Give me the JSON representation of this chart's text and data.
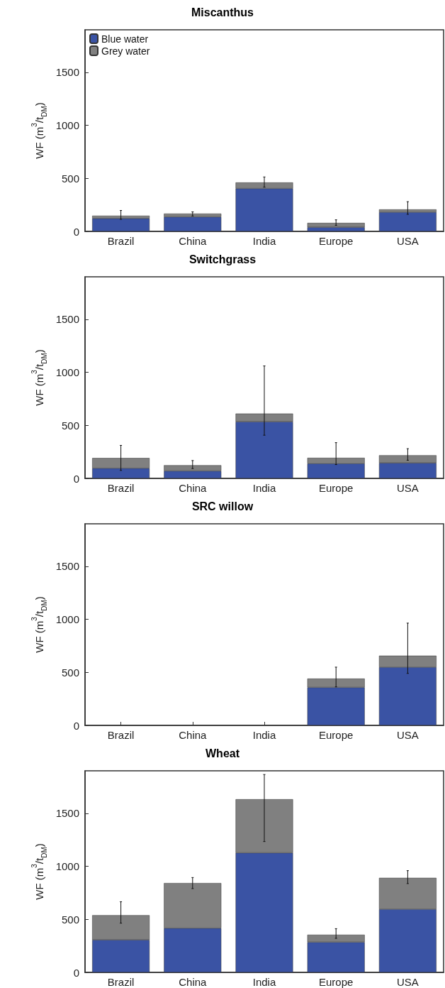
{
  "chart_data": [
    {
      "type": "bar",
      "title": "Miscanthus",
      "ylabel": "WF (m$^{3}$/t$_{DM}$)",
      "categories": [
        "Brazil",
        "China",
        "India",
        "Europe",
        "USA"
      ],
      "stacked": true,
      "legend": "top left",
      "grid": false,
      "ylim": [
        0,
        1900
      ],
      "yticks": [
        0,
        500,
        1000,
        1500
      ],
      "series": [
        {
          "name": "Blue water",
          "color": "#3a53a4",
          "values": [
            122,
            137,
            404,
            39,
            181
          ]
        },
        {
          "name": "Grey water",
          "color": "#808080",
          "values": [
            26,
            31,
            57,
            41,
            26
          ],
          "errors": [
            [
              114,
              197
            ],
            [
              145,
              184
            ],
            [
              417,
              513
            ],
            [
              57,
              109
            ],
            [
              161,
              280
            ]
          ]
        }
      ]
    },
    {
      "type": "bar",
      "title": "Switchgrass",
      "ylabel": "WF (m$^{3}$/t$_{DM}$)",
      "categories": [
        "Brazil",
        "China",
        "India",
        "Europe",
        "USA"
      ],
      "stacked": true,
      "grid": false,
      "ylim": [
        0,
        1900
      ],
      "yticks": [
        0,
        500,
        1000,
        1500
      ],
      "series": [
        {
          "color": "#3a53a4",
          "values": [
            96,
            70,
            534,
            140,
            145
          ]
        },
        {
          "color": "#808080",
          "values": [
            96,
            54,
            77,
            54,
            73
          ],
          "errors": [
            [
              75,
              311
            ],
            [
              93,
              168
            ],
            [
              407,
              1060
            ],
            [
              130,
              337
            ],
            [
              171,
              280
            ]
          ]
        }
      ]
    },
    {
      "type": "bar",
      "title": "SRC willow",
      "ylabel": "WF (m$^{3}$/t$_{DM}$)",
      "categories": [
        "Brazil",
        "China",
        "India",
        "Europe",
        "USA"
      ],
      "stacked": true,
      "grid": false,
      "ylim": [
        0,
        1900
      ],
      "yticks": [
        0,
        500,
        1000,
        1500
      ],
      "series": [
        {
          "color": "#3a53a4",
          "values": [
            null,
            null,
            null,
            358,
            549
          ]
        },
        {
          "color": "#808080",
          "values": [
            null,
            null,
            null,
            83,
            108
          ],
          "errors": [
            null,
            null,
            null,
            [
              363,
              549
            ],
            [
              490,
              964
            ]
          ]
        }
      ]
    },
    {
      "type": "bar",
      "title": "Wheat",
      "ylabel": "WF (m$^{3}$/t$_{DM}$)",
      "categories": [
        "Brazil",
        "China",
        "India",
        "Europe",
        "USA"
      ],
      "stacked": true,
      "grid": false,
      "ylim": [
        0,
        1900
      ],
      "yticks": [
        0,
        500,
        1000,
        1500
      ],
      "series": [
        {
          "color": "#3a53a4",
          "values": [
            306,
            417,
            1127,
            285,
            596
          ]
        },
        {
          "color": "#808080",
          "values": [
            233,
            425,
            505,
            70,
            295
          ],
          "errors": [
            [
              464,
              666
            ],
            [
              790,
              894
            ],
            [
              1233,
              1865
            ],
            [
              321,
              412
            ],
            [
              837,
              959
            ]
          ]
        }
      ]
    }
  ]
}
